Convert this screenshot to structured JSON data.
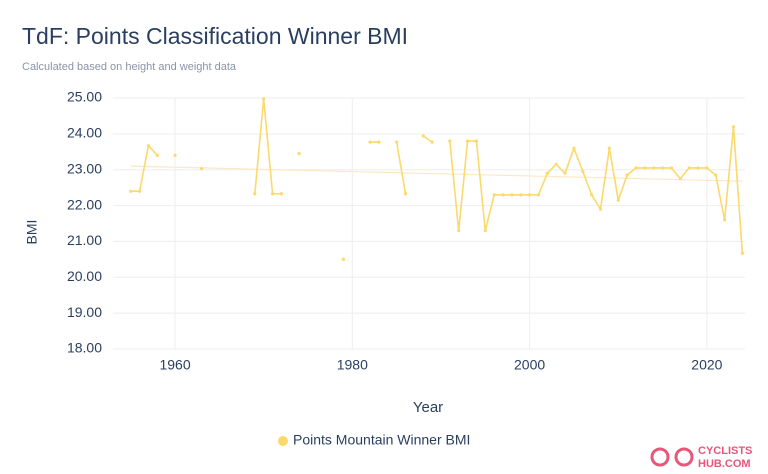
{
  "chart_data": {
    "type": "line",
    "title": "TdF: Points Classification Winner BMI",
    "subtitle": "Calculated based on height and weight data",
    "x_label": "Year",
    "y_label": "BMI",
    "x": [
      1955,
      1956,
      1957,
      1958,
      1959,
      1960,
      1961,
      1962,
      1963,
      1964,
      1965,
      1966,
      1967,
      1968,
      1969,
      1970,
      1971,
      1972,
      1973,
      1974,
      1975,
      1976,
      1977,
      1978,
      1979,
      1980,
      1981,
      1982,
      1983,
      1984,
      1985,
      1986,
      1987,
      1988,
      1989,
      1990,
      1991,
      1992,
      1993,
      1994,
      1995,
      1996,
      1997,
      1998,
      1999,
      2000,
      2001,
      2002,
      2003,
      2004,
      2005,
      2006,
      2007,
      2008,
      2009,
      2010,
      2011,
      2012,
      2013,
      2014,
      2015,
      2016,
      2017,
      2018,
      2019,
      2020,
      2021,
      2022,
      2023,
      2024
    ],
    "series": [
      {
        "name": "Points Mountain Winner BMI",
        "color": "#fbd96a",
        "values": [
          22.4,
          22.4,
          23.67,
          23.4,
          null,
          23.4,
          null,
          null,
          23.03,
          null,
          null,
          null,
          null,
          null,
          22.33,
          24.98,
          22.33,
          22.33,
          null,
          23.45,
          null,
          null,
          null,
          null,
          20.5,
          null,
          null,
          23.77,
          23.77,
          null,
          23.77,
          22.33,
          null,
          23.94,
          23.77,
          null,
          23.8,
          21.3,
          23.8,
          23.8,
          21.3,
          22.3,
          22.3,
          22.3,
          22.3,
          22.3,
          22.3,
          22.9,
          23.15,
          22.9,
          23.6,
          22.95,
          22.3,
          21.9,
          23.6,
          22.15,
          22.85,
          23.05,
          23.05,
          23.05,
          23.05,
          23.05,
          22.75,
          23.05,
          23.05,
          23.05,
          22.85,
          21.6,
          24.2,
          20.67
        ]
      }
    ],
    "trendline": {
      "x": [
        1955,
        2024
      ],
      "values": [
        23.1,
        22.68
      ],
      "color": "#fde7c4"
    },
    "xlim": [
      1953,
      2024.3
    ],
    "xticks": [
      1960,
      1980,
      2000,
      2020
    ],
    "ylim": [
      18,
      25
    ],
    "yticks": [
      {
        "value": 18,
        "label": "18.00"
      },
      {
        "value": 19,
        "label": "19.00"
      },
      {
        "value": 20,
        "label": "20.00"
      },
      {
        "value": 21,
        "label": "21.00"
      },
      {
        "value": 22,
        "label": "22.00"
      },
      {
        "value": 23,
        "label": "23.00"
      },
      {
        "value": 24,
        "label": "24.00"
      },
      {
        "value": 25,
        "label": "25.00"
      }
    ],
    "grid": true,
    "logo": [
      "CYCLISTS",
      "HUB.COM"
    ]
  }
}
